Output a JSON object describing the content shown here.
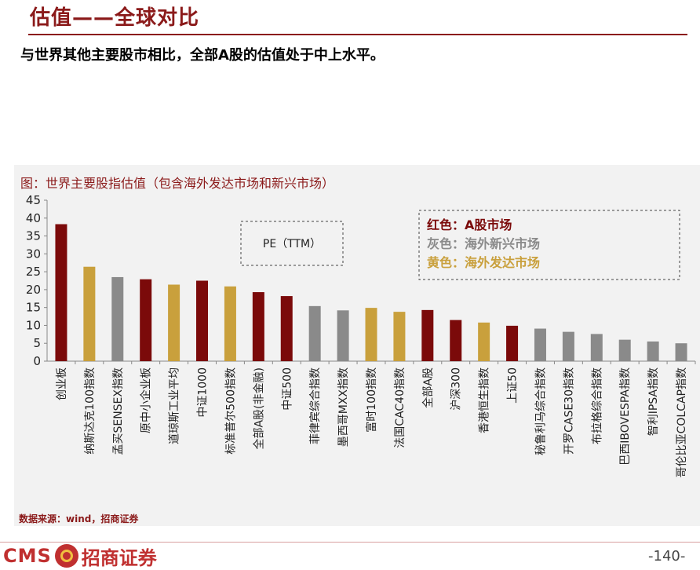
{
  "header": {
    "title": "估值——全球对比",
    "subtitle": "与世界其他主要股市相比，全部A股的估值处于中上水平。"
  },
  "chart_title": "图：世界主要股指估值（包含海外发达市场和新兴市场）",
  "source": "数据来源：wind，招商证券",
  "footer": {
    "logo_text": "CMS",
    "logo_cn": "招商证券",
    "page_number": "-140-"
  },
  "chart_data": {
    "type": "bar",
    "annotation": "PE（TTM）",
    "ylim": [
      0,
      45
    ],
    "yticks": [
      0,
      5,
      10,
      15,
      20,
      25,
      30,
      35,
      40,
      45
    ],
    "grid": false,
    "legend": [
      {
        "key": "a_share",
        "label": "红色：A股市场",
        "color": "#7b0a0a"
      },
      {
        "key": "emerging",
        "label": "灰色：海外新兴市场",
        "color": "#8a8a8a"
      },
      {
        "key": "developed",
        "label": "黄色：海外发达市场",
        "color": "#c9a03c"
      }
    ],
    "categories": [
      "创业板",
      "纳斯达克100指数",
      "孟买SENSEX指数",
      "原中小企业板",
      "道琼斯工业平均",
      "中证1000",
      "标准普尔500指数",
      "全部A股(非金融)",
      "中证500",
      "菲律宾综合指数",
      "墨西哥MXX指数",
      "富时100指数",
      "法国CAC40指数",
      "全部A股",
      "沪深300",
      "香港恒生指数",
      "上证50",
      "秘鲁利马综合指数",
      "开罗CASE30指数",
      "布拉格综合指数",
      "巴西IBOVESPA指数",
      "智利IPSA指数",
      "哥伦比亚COLCAP指数"
    ],
    "values": [
      38.3,
      26.4,
      23.5,
      22.9,
      21.4,
      22.5,
      20.9,
      19.3,
      18.2,
      15.4,
      14.2,
      14.9,
      13.8,
      14.3,
      11.5,
      10.8,
      9.9,
      9.1,
      8.2,
      7.6,
      6.0,
      5.5,
      5.0
    ],
    "groups": [
      "a_share",
      "developed",
      "emerging",
      "a_share",
      "developed",
      "a_share",
      "developed",
      "a_share",
      "a_share",
      "emerging",
      "emerging",
      "developed",
      "developed",
      "a_share",
      "a_share",
      "developed",
      "a_share",
      "emerging",
      "emerging",
      "emerging",
      "emerging",
      "emerging",
      "emerging"
    ],
    "colors": {
      "a_share": "#7b0a0a",
      "emerging": "#8a8a8a",
      "developed": "#c9a03c"
    }
  }
}
